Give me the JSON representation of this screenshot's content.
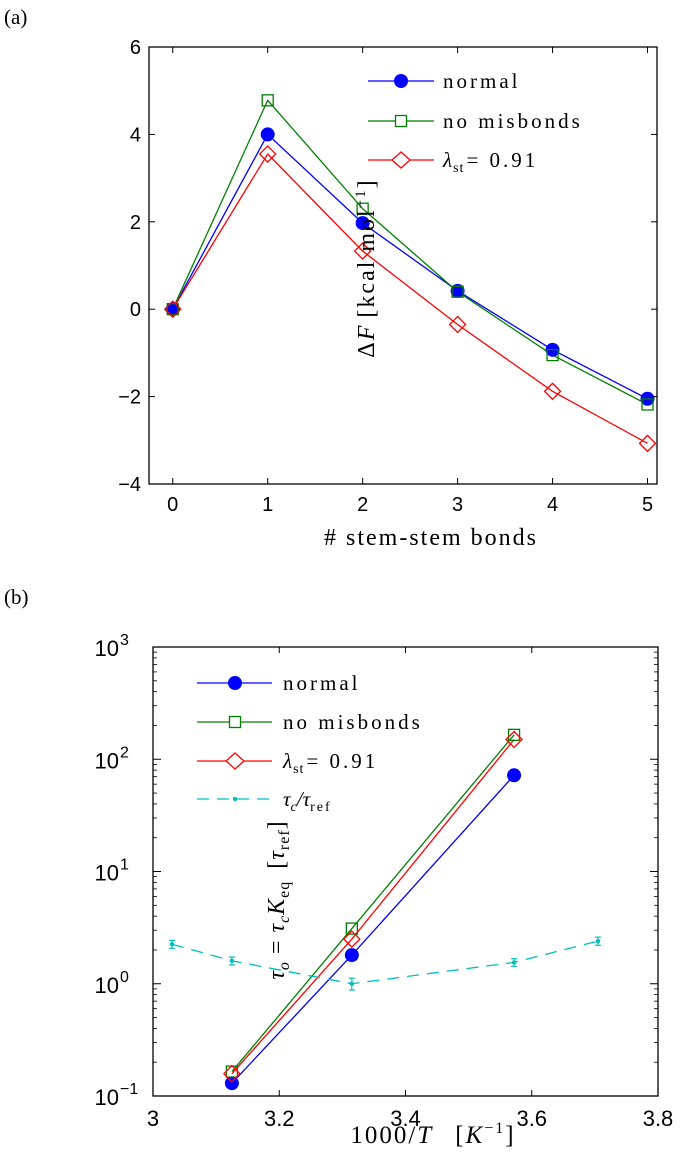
{
  "chart_data": [
    {
      "panel": "(a)",
      "type": "line",
      "xlabel": "# stem-stem bonds",
      "ylabel": "ΔF [kcal mol⁻¹]",
      "xlim": [
        -0.25,
        5.1
      ],
      "ylim": [
        -4,
        6
      ],
      "xticks": [
        0,
        1,
        2,
        3,
        4,
        5
      ],
      "yticks": [
        -4,
        -2,
        0,
        2,
        4,
        6
      ],
      "x": [
        0,
        1,
        2,
        3,
        4,
        5
      ],
      "series": [
        {
          "name": "normal",
          "marker": "filled-circle",
          "color": "#0000ff",
          "values": [
            0,
            4.0,
            1.97,
            0.42,
            -0.93,
            -2.05
          ]
        },
        {
          "name": "no misbonds",
          "marker": "square",
          "color": "#008000",
          "values": [
            0,
            4.78,
            2.3,
            0.4,
            -1.05,
            -2.18
          ]
        },
        {
          "name": "λst = 0.91",
          "marker": "diamond",
          "color": "#ff0000",
          "values": [
            0,
            3.55,
            1.33,
            -0.35,
            -1.88,
            -3.07
          ]
        }
      ],
      "legend": "top-right",
      "grid": false
    },
    {
      "panel": "(b)",
      "type": "line",
      "xlabel": "1000/T [K⁻¹]",
      "ylabel": "τo = τc Keq [τref]",
      "xlim": [
        3.0,
        3.8
      ],
      "ylim": [
        0.1,
        1000
      ],
      "yscale": "log",
      "xticks": [
        3,
        3.2,
        3.4,
        3.6,
        3.8
      ],
      "yticks": [
        0.1,
        1,
        10,
        100,
        1000
      ],
      "series": [
        {
          "name": "normal",
          "marker": "filled-circle",
          "color": "#0000ff",
          "x": [
            3.125,
            3.315,
            3.572
          ],
          "values": [
            0.13,
            1.8,
            72
          ]
        },
        {
          "name": "no misbonds",
          "marker": "square",
          "color": "#008000",
          "x": [
            3.125,
            3.315,
            3.572
          ],
          "values": [
            0.165,
            3.1,
            165
          ]
        },
        {
          "name": "λst = 0.91",
          "marker": "diamond",
          "color": "#ff0000",
          "x": [
            3.125,
            3.315,
            3.572
          ],
          "values": [
            0.158,
            2.5,
            150
          ]
        },
        {
          "name": "τc/τref",
          "marker": "dot",
          "line": "dashed",
          "color": "#00bfbf",
          "x": [
            3.03,
            3.125,
            3.315,
            3.572,
            3.705
          ],
          "values": [
            2.25,
            1.6,
            1.0,
            1.55,
            2.4
          ],
          "error": [
            0.18,
            0.13,
            0.12,
            0.12,
            0.2
          ]
        }
      ],
      "legend": "top-left",
      "grid": false
    }
  ],
  "labels": {
    "panel_a": "(a)",
    "panel_b": "(b)",
    "a_xlabel": "# stem-stem bonds",
    "b_xlabel_prefix": "1000/",
    "b_xlabel_T": "T",
    "b_xlabel_unit_open": "[",
    "b_xlabel_K": "K",
    "b_xlabel_exp": "−1",
    "b_xlabel_unit_close": "]",
    "a_ylabel_delta": "Δ",
    "a_ylabel_F": "F",
    "a_ylabel_unit": "[kcal mol",
    "a_ylabel_exp": "−1",
    "a_ylabel_close": "]",
    "b_ylabel_tau": "τ",
    "b_ylabel_o": "o",
    "b_ylabel_eq": " = ",
    "b_ylabel_tauc": "τ",
    "b_ylabel_c": "c",
    "b_ylabel_K": "K",
    "b_ylabel_Ksub": "eq",
    "b_ylabel_unit_open": "[",
    "b_ylabel_tauref": "τ",
    "b_ylabel_ref": "ref",
    "b_ylabel_unit_close": "]",
    "legend_normal": "normal",
    "legend_nomis": "no misbonds",
    "legend_lambda": "λ",
    "legend_lambda_sub": "st",
    "legend_lambda_val": "= 0.91",
    "legend_tauc": "τ",
    "legend_tauc_sub": "c",
    "legend_slash": "/",
    "legend_tauref": "τ",
    "legend_tauref_sub": "ref"
  },
  "ticks": {
    "a_x": [
      "0",
      "1",
      "2",
      "3",
      "4",
      "5"
    ],
    "a_y": [
      "−4",
      "−2",
      "0",
      "2",
      "4",
      "6"
    ],
    "b_x": [
      "3",
      "3.2",
      "3.4",
      "3.6",
      "3.8"
    ],
    "b_y_base": "10",
    "b_y_exp": [
      "−1",
      "0",
      "1",
      "2",
      "3"
    ]
  }
}
